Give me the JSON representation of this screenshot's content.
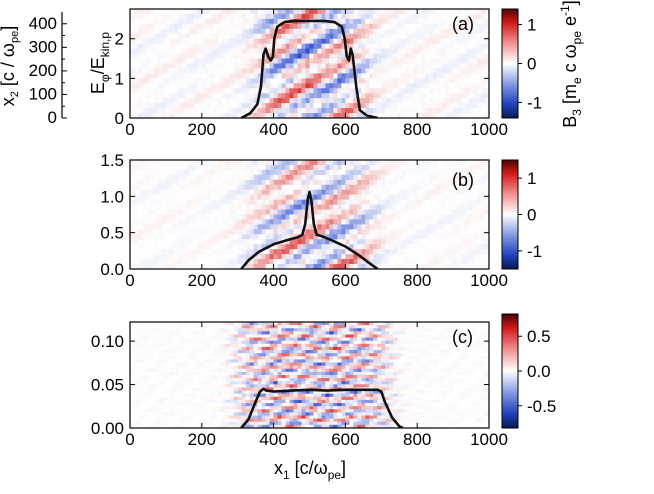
{
  "figure": {
    "xlabel_main": "x",
    "xlabel_sub": "1",
    "xlabel_unit_open": " [c/ω",
    "xlabel_unit_sub": "pe",
    "xlabel_unit_close": "]",
    "inset_ylabel_main": "x",
    "inset_ylabel_sub": "2",
    "inset_ylabel_rest": " [c / ω",
    "inset_ylabel_unit_sub": "pe",
    "inset_ylabel_close": "]",
    "inset_ticks": [
      "0",
      "100",
      "200",
      "300",
      "400"
    ],
    "ylabel_a_main": "E",
    "ylabel_a_sub1": "φ",
    "ylabel_a_mid": "/E",
    "ylabel_a_sub2": "kin,p",
    "cbar_label_main": "B",
    "cbar_label_sub": "3",
    "cbar_label_rest": " [m",
    "cbar_label_sub_e": "e",
    "cbar_label_c": " c ω",
    "cbar_label_sub_pe": "pe",
    "cbar_label_e": " e",
    "cbar_label_sup": "-1",
    "cbar_label_close": "]"
  },
  "chart_data": [
    {
      "type": "heatmap",
      "panel": "(a)",
      "field": "B3",
      "x_range": [
        0,
        1000
      ],
      "x_ticks": [
        0,
        200,
        400,
        600,
        800,
        1000
      ],
      "x_tick_labels": [
        "0",
        "200",
        "400",
        "600",
        "800",
        "1000"
      ],
      "y_range": [
        0,
        2.75
      ],
      "y_ticks": [
        0,
        1,
        2
      ],
      "y_tick_labels": [
        "0",
        "1",
        "2"
      ],
      "ylabel": "Eφ/Ekin,p",
      "colorbar_range": [
        -1.4,
        1.4
      ],
      "colorbar_ticks": [
        -1,
        0,
        1
      ],
      "colorbar_tick_labels": [
        "-1",
        "0",
        "1"
      ],
      "overlay_line": {
        "x": [
          310,
          335,
          355,
          365,
          372,
          378,
          385,
          392,
          398,
          402,
          410,
          430,
          460,
          500,
          540,
          570,
          590,
          598,
          604,
          610,
          615,
          620,
          630,
          640,
          660,
          690
        ],
        "y": [
          0.0,
          0.12,
          0.35,
          0.8,
          1.6,
          1.75,
          1.55,
          1.45,
          1.55,
          2.0,
          2.3,
          2.42,
          2.45,
          2.45,
          2.45,
          2.42,
          2.3,
          2.0,
          1.55,
          1.45,
          1.75,
          1.6,
          0.8,
          0.2,
          0.06,
          0.0
        ]
      }
    },
    {
      "type": "heatmap",
      "panel": "(b)",
      "field": "B3",
      "x_range": [
        0,
        1000
      ],
      "x_ticks": [
        0,
        200,
        400,
        600,
        800,
        1000
      ],
      "x_tick_labels": [
        "0",
        "200",
        "400",
        "600",
        "800",
        "1000"
      ],
      "y_range": [
        0,
        1.5
      ],
      "y_ticks": [
        0,
        0.5,
        1.0,
        1.5
      ],
      "y_tick_labels": [
        "0.0",
        "0.5",
        "1.0",
        "1.5"
      ],
      "colorbar_range": [
        -1.5,
        1.5
      ],
      "colorbar_ticks": [
        -1,
        0,
        1
      ],
      "colorbar_tick_labels": [
        "-1",
        "0",
        "1"
      ],
      "overlay_line": {
        "x": [
          310,
          330,
          360,
          400,
          440,
          470,
          480,
          488,
          495,
          500,
          505,
          512,
          520,
          535,
          560,
          600,
          640,
          670,
          690
        ],
        "y": [
          0.0,
          0.12,
          0.24,
          0.34,
          0.4,
          0.44,
          0.47,
          0.62,
          0.95,
          1.06,
          0.95,
          0.62,
          0.47,
          0.45,
          0.4,
          0.31,
          0.18,
          0.07,
          0.0
        ]
      }
    },
    {
      "type": "heatmap",
      "panel": "(c)",
      "field": "B3",
      "x_range": [
        0,
        1000
      ],
      "x_ticks": [
        0,
        200,
        400,
        600,
        800,
        1000
      ],
      "x_tick_labels": [
        "0",
        "200",
        "400",
        "600",
        "800",
        "1000"
      ],
      "y_range": [
        0,
        0.122
      ],
      "y_ticks": [
        0,
        0.05,
        0.1
      ],
      "y_tick_labels": [
        "0.00",
        "0.05",
        "0.10"
      ],
      "colorbar_range": [
        -0.82,
        0.82
      ],
      "colorbar_ticks": [
        -0.5,
        0,
        0.5
      ],
      "colorbar_tick_labels": [
        "-0.5",
        "0.0",
        "0.5"
      ],
      "overlay_line": {
        "x": [
          310,
          330,
          350,
          362,
          372,
          380,
          400,
          450,
          500,
          550,
          600,
          650,
          690,
          700,
          710,
          730,
          750,
          760
        ],
        "y": [
          0.0,
          0.01,
          0.03,
          0.042,
          0.045,
          0.043,
          0.042,
          0.043,
          0.044,
          0.043,
          0.044,
          0.044,
          0.044,
          0.042,
          0.03,
          0.012,
          0.002,
          0.0
        ]
      }
    }
  ]
}
